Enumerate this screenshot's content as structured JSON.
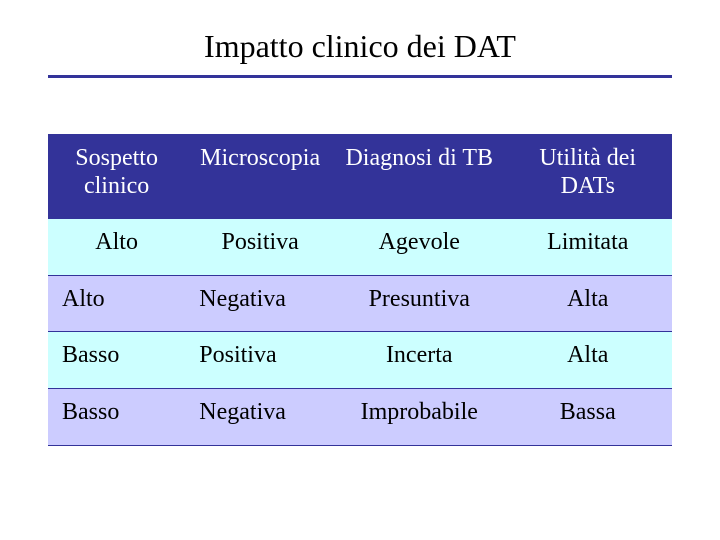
{
  "title": "Impatto clinico dei DAT",
  "colors": {
    "rule": "#333399",
    "header_bg": "#333399",
    "header_text": "#ffffff",
    "row_odd_bg": "#ccffff",
    "row_even_bg": "#ccccff",
    "cell_border": "#333399"
  },
  "table": {
    "column_widths_pct": [
      22,
      24,
      27,
      27
    ],
    "headers": [
      "Sospetto clinico",
      "Microscopia",
      "Diagnosi di TB",
      "Utilità dei DATs"
    ],
    "rows": [
      {
        "cells": [
          "Alto",
          "Positiva",
          "Agevole",
          "Limitata"
        ]
      },
      {
        "cells": [
          "Alto",
          "Negativa",
          "Presuntiva",
          "Alta"
        ]
      },
      {
        "cells": [
          "Basso",
          "Positiva",
          "Incerta",
          "Alta"
        ]
      },
      {
        "cells": [
          "Basso",
          "Negativa",
          "Improbabile",
          "Bassa"
        ]
      }
    ]
  }
}
